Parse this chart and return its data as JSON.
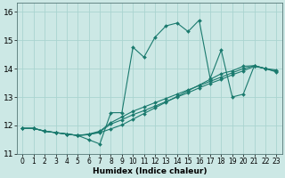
{
  "title": "",
  "xlabel": "Humidex (Indice chaleur)",
  "ylabel": "",
  "bg_color": "#cce8e5",
  "grid_color": "#aad4d0",
  "line_color": "#1a7a6e",
  "xlim": [
    -0.5,
    23.5
  ],
  "ylim": [
    11,
    16.3
  ],
  "yticks": [
    11,
    12,
    13,
    14,
    15,
    16
  ],
  "xticks": [
    0,
    1,
    2,
    3,
    4,
    5,
    6,
    7,
    8,
    9,
    10,
    11,
    12,
    13,
    14,
    15,
    16,
    17,
    18,
    19,
    20,
    21,
    22,
    23
  ],
  "lines": [
    {
      "x": [
        0,
        1,
        2,
        3,
        4,
        5,
        6,
        7,
        8,
        9,
        10,
        11,
        12,
        13,
        14,
        15,
        16,
        17,
        18,
        19,
        20,
        21,
        22
      ],
      "y": [
        11.9,
        11.9,
        11.8,
        11.75,
        11.7,
        11.65,
        11.5,
        11.35,
        12.45,
        12.45,
        14.75,
        14.4,
        15.1,
        15.5,
        15.6,
        15.3,
        15.7,
        13.65,
        14.65,
        13.0,
        13.1,
        14.1,
        14.0
      ]
    },
    {
      "x": [
        0,
        1,
        2,
        3,
        4,
        5,
        6,
        7,
        8,
        9,
        10,
        11,
        12,
        13,
        14,
        15,
        16,
        17,
        18,
        19,
        20,
        21,
        22,
        23
      ],
      "y": [
        11.9,
        11.9,
        11.8,
        11.75,
        11.7,
        11.65,
        11.7,
        11.8,
        12.1,
        12.3,
        12.5,
        12.65,
        12.8,
        12.95,
        13.1,
        13.25,
        13.4,
        13.55,
        13.7,
        13.85,
        14.0,
        14.1,
        14.0,
        13.95
      ]
    },
    {
      "x": [
        0,
        1,
        2,
        3,
        4,
        5,
        6,
        7,
        8,
        9,
        10,
        11,
        12,
        13,
        14,
        15,
        16,
        17,
        18,
        19,
        20,
        21,
        22,
        23
      ],
      "y": [
        11.9,
        11.9,
        11.8,
        11.75,
        11.7,
        11.65,
        11.68,
        11.78,
        12.05,
        12.2,
        12.38,
        12.52,
        12.68,
        12.84,
        13.0,
        13.15,
        13.32,
        13.48,
        13.62,
        13.78,
        13.92,
        14.08,
        14.0,
        13.88
      ]
    },
    {
      "x": [
        0,
        1,
        2,
        3,
        4,
        5,
        6,
        7,
        8,
        9,
        10,
        11,
        12,
        13,
        14,
        15,
        16,
        17,
        18,
        19,
        20,
        21,
        22,
        23
      ],
      "y": [
        11.9,
        11.9,
        11.8,
        11.75,
        11.7,
        11.65,
        11.68,
        11.75,
        11.88,
        12.02,
        12.22,
        12.42,
        12.62,
        12.82,
        13.02,
        13.22,
        13.42,
        13.62,
        13.82,
        13.92,
        14.08,
        14.1,
        14.0,
        13.9
      ]
    }
  ]
}
